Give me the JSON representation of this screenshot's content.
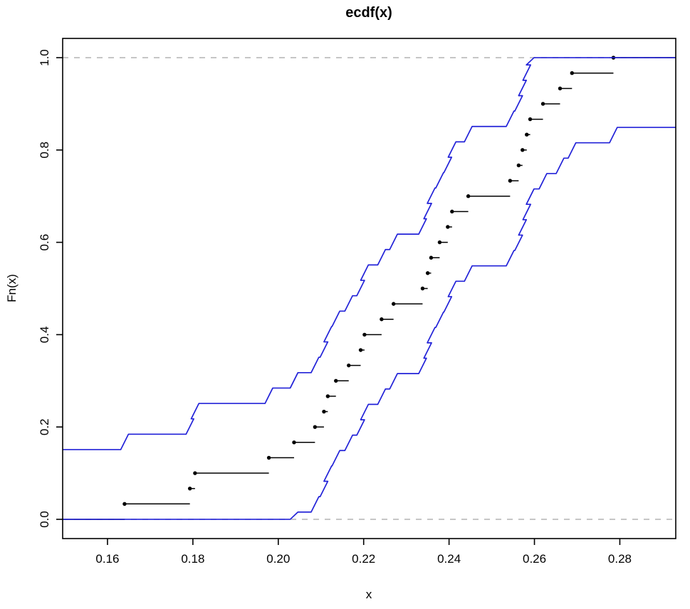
{
  "figure": {
    "title": "ecdf(x)",
    "xlabel": "x",
    "ylabel": "Fn(x)"
  },
  "chart_data": {
    "type": "line",
    "subtype": "ecdf-step-with-confidence-band",
    "title": "ecdf(x)",
    "xlabel": "x",
    "ylabel": "Fn(x)",
    "n": 30,
    "ecdf_x": [
      0.164,
      0.1793,
      0.1805,
      0.1978,
      0.2037,
      0.2086,
      0.2107,
      0.2116,
      0.2135,
      0.2165,
      0.2193,
      0.2202,
      0.2242,
      0.227,
      0.2338,
      0.235,
      0.2358,
      0.2378,
      0.2397,
      0.2407,
      0.2445,
      0.2543,
      0.2563,
      0.2572,
      0.2582,
      0.259,
      0.262,
      0.266,
      0.2688,
      0.2785
    ],
    "step_height": 0.0333,
    "band_offset": 0.151,
    "band_clamp": [
      0,
      1
    ],
    "reference_lines": [
      0.0,
      1.0
    ],
    "x_ticks": [
      0.16,
      0.18,
      0.2,
      0.22,
      0.24,
      0.26,
      0.28
    ],
    "x_tick_labels": [
      "0.16",
      "0.18",
      "0.20",
      "0.22",
      "0.24",
      "0.26",
      "0.28"
    ],
    "y_ticks": [
      0.0,
      0.2,
      0.4,
      0.6,
      0.8,
      1.0
    ],
    "y_tick_labels": [
      "0.0",
      "0.2",
      "0.4",
      "0.6",
      "0.8",
      "1.0"
    ],
    "xlim": [
      0.1495,
      0.2931
    ],
    "ylim": [
      -0.0417,
      1.0417
    ],
    "grid": false,
    "legend": false,
    "colors": {
      "ecdf_line": "#000000",
      "ecdf_point": "#000000",
      "band_line": "#2222d8",
      "reference_dashed": "#b9b9b9",
      "box": "#000000",
      "background": "#ffffff"
    }
  }
}
